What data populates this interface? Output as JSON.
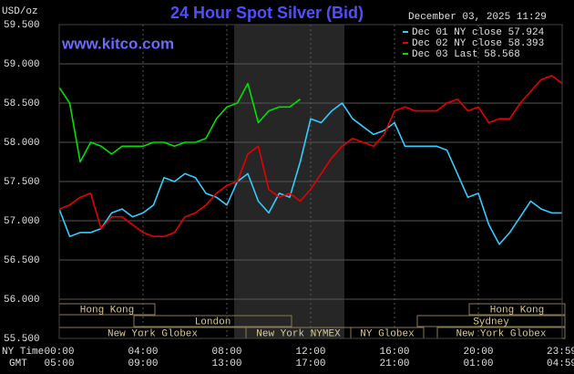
{
  "chart_data": {
    "type": "line",
    "title": "24 Hour Spot Silver (Bid)",
    "unit_label": "USD/oz",
    "timestamp": "December 03, 2025 11:29",
    "watermark": "www.kitco.com",
    "x_row_labels": [
      "NY Time",
      "GMT"
    ],
    "x": [
      0,
      0.5,
      1,
      1.5,
      2,
      2.5,
      3,
      3.5,
      4,
      4.5,
      5,
      5.5,
      6,
      6.5,
      7,
      7.5,
      8,
      8.5,
      9,
      9.5,
      10,
      10.5,
      11,
      11.5,
      12,
      12.5,
      13,
      13.5,
      14,
      14.5,
      15,
      15.5,
      16,
      16.5,
      17,
      17.5,
      18,
      18.5,
      19,
      19.5,
      20,
      20.5,
      21,
      21.5,
      22,
      22.5,
      23,
      23.5,
      24
    ],
    "xlim": [
      0,
      24
    ],
    "xticks": [
      {
        "value": 0,
        "label": "00:00"
      },
      {
        "value": 4,
        "label": "04:00"
      },
      {
        "value": 8,
        "label": "08:00"
      },
      {
        "value": 12,
        "label": "12:00"
      },
      {
        "value": 16,
        "label": "16:00"
      },
      {
        "value": 20,
        "label": "20:00"
      },
      {
        "value": 23.98,
        "label": "23:59"
      }
    ],
    "gmt_tick_labels": [
      "05:00",
      "09:00",
      "13:00",
      "17:00",
      "21:00",
      "01:00",
      "04:59"
    ],
    "ylim": [
      55.5,
      59.5
    ],
    "yticks": [
      {
        "value": 59.5,
        "label": "59.500"
      },
      {
        "value": 59,
        "label": "59.000"
      },
      {
        "value": 58.5,
        "label": "58.500"
      },
      {
        "value": 58,
        "label": "58.000"
      },
      {
        "value": 57.5,
        "label": "57.500"
      },
      {
        "value": 57,
        "label": "57.000"
      },
      {
        "value": 56.5,
        "label": "56.500"
      },
      {
        "value": 56,
        "label": "56.000"
      },
      {
        "value": 55.5,
        "label": "55.500"
      }
    ],
    "grid": true,
    "legend_position": "top-right",
    "market_sessions": [
      "Hong Kong",
      "Hong Kong",
      "London",
      "Sydney",
      "New York Globex",
      "New York NYMEX",
      "NY Globex",
      "New York Globex"
    ],
    "series": [
      {
        "name": "Dec 01 NY close 57.924",
        "color": "#33ccff",
        "values": [
          57.15,
          56.8,
          56.85,
          56.85,
          56.9,
          57.1,
          57.15,
          57.05,
          57.1,
          57.2,
          57.55,
          57.5,
          57.6,
          57.55,
          57.35,
          57.3,
          57.2,
          57.5,
          57.6,
          57.25,
          57.1,
          57.35,
          57.3,
          57.75,
          58.3,
          58.25,
          58.4,
          58.5,
          58.3,
          58.2,
          58.1,
          58.15,
          58.25,
          57.95,
          57.95,
          57.95,
          57.95,
          57.9,
          57.6,
          57.3,
          57.35,
          56.95,
          56.7,
          56.85,
          57.05,
          57.25,
          57.15,
          57.1,
          57.1
        ]
      },
      {
        "name": "Dec 02 NY close 58.393",
        "color": "#e60000",
        "values": [
          57.15,
          57.2,
          57.3,
          57.35,
          56.9,
          57.05,
          57.05,
          56.95,
          56.85,
          56.8,
          56.8,
          56.85,
          57.05,
          57.1,
          57.2,
          57.35,
          57.45,
          57.5,
          57.85,
          57.95,
          57.4,
          57.3,
          57.35,
          57.25,
          57.4,
          57.6,
          57.8,
          57.95,
          58.05,
          58.0,
          57.95,
          58.1,
          58.4,
          58.45,
          58.4,
          58.4,
          58.4,
          58.5,
          58.55,
          58.4,
          58.45,
          58.25,
          58.3,
          58.3,
          58.5,
          58.65,
          58.8,
          58.85,
          58.75
        ]
      },
      {
        "name": "Dec 03 Last 58.568",
        "color": "#00e000",
        "values": [
          58.7,
          58.5,
          57.75,
          58.0,
          57.95,
          57.85,
          57.95,
          57.95,
          57.95,
          58.0,
          58.0,
          57.95,
          58.0,
          58.0,
          58.05,
          58.3,
          58.45,
          58.5,
          58.75,
          58.25,
          58.4,
          58.45,
          58.45,
          58.55,
          null,
          null,
          null,
          null,
          null,
          null,
          null,
          null,
          null,
          null,
          null,
          null,
          null,
          null,
          null,
          null,
          null,
          null,
          null,
          null,
          null,
          null,
          null,
          null,
          null
        ]
      }
    ]
  }
}
